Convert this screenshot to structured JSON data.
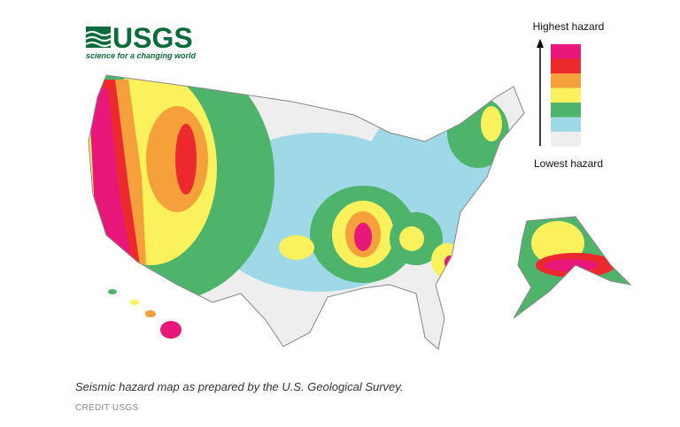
{
  "logo": {
    "title": "USGS",
    "tagline": "science for a changing world"
  },
  "legend": {
    "top_label": "Highest hazard",
    "bottom_label": "Lowest hazard",
    "colors": [
      "#e8187b",
      "#ec2a2e",
      "#f6a03c",
      "#fbf15c",
      "#4fb46b",
      "#9fd8e6",
      "#eeeeee"
    ]
  },
  "caption": {
    "text": "Seismic hazard map as prepared by the U.S. Geological Survey.",
    "credit": "CREDIT USGS"
  }
}
